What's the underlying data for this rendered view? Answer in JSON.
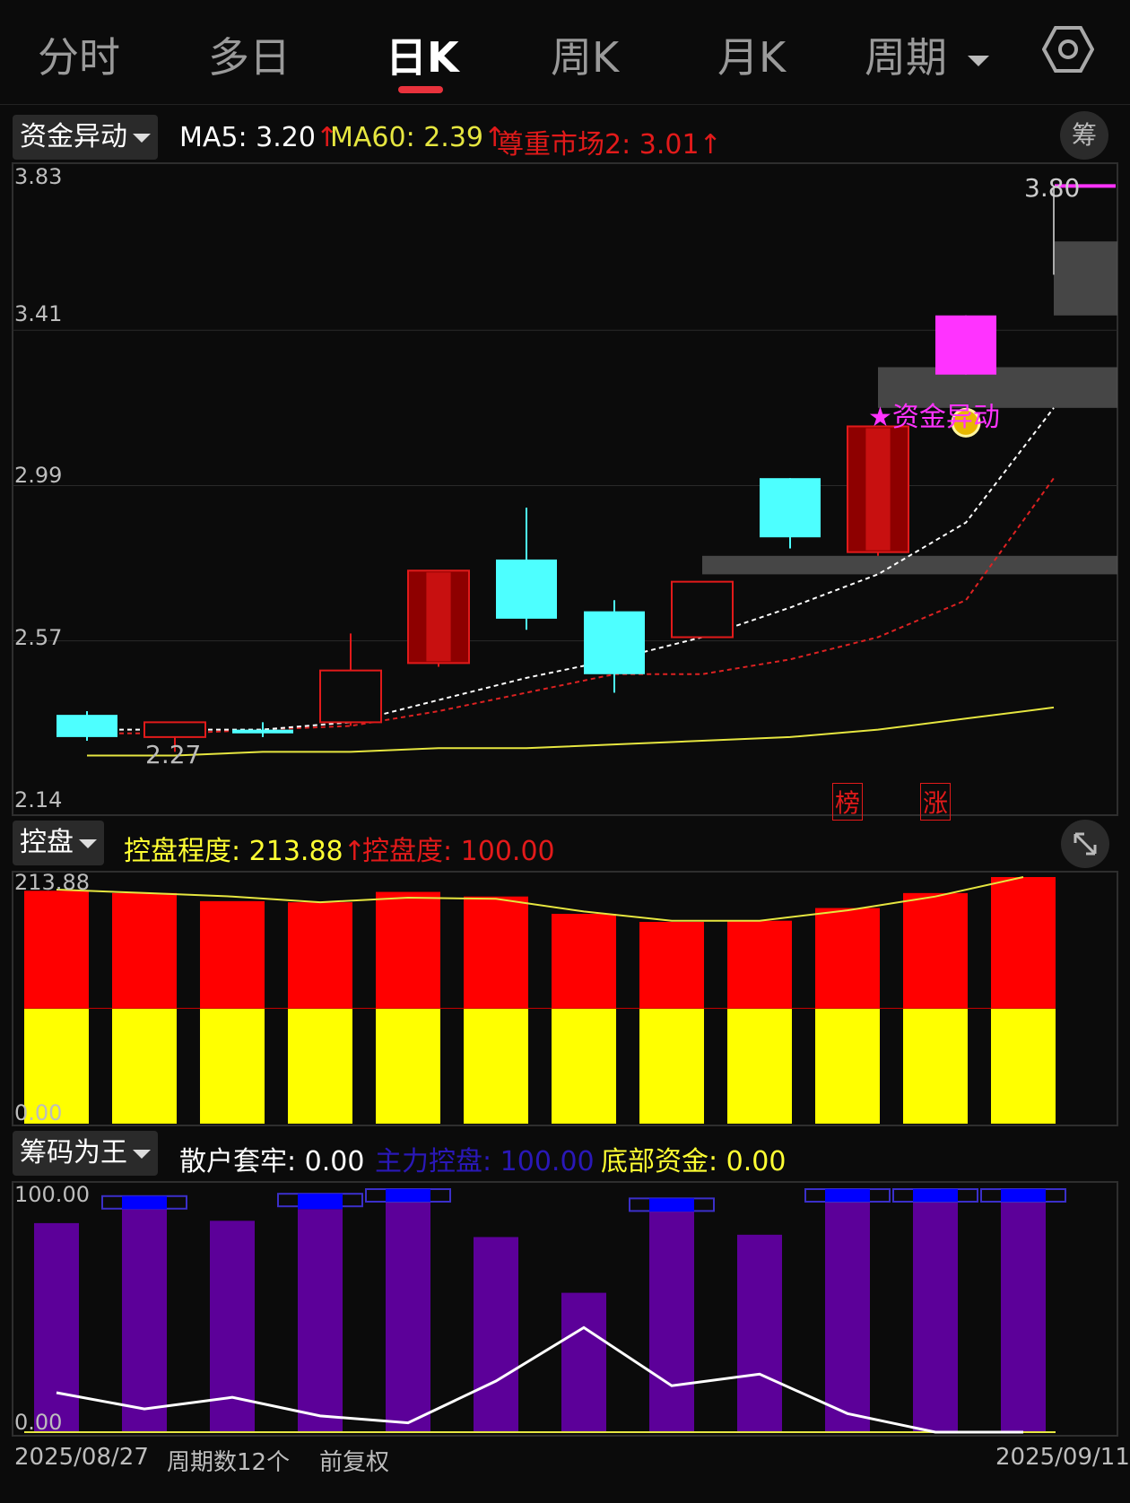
{
  "tabs": [
    {
      "label": "分时",
      "active": false
    },
    {
      "label": "多日",
      "active": false
    },
    {
      "label": "日K",
      "active": true
    },
    {
      "label": "周K",
      "active": false
    },
    {
      "label": "月K",
      "active": false
    },
    {
      "label": "周期",
      "active": false
    }
  ],
  "settings_icon": "gear-icon",
  "main_panel": {
    "indicator": "资金异动",
    "ma5": "MA5: 3.20",
    "ma60": "MA60: 2.39",
    "zzsc": "尊重市场2: 3.01",
    "chip_button": "筹",
    "axis": [
      "3.83",
      "3.41",
      "2.99",
      "2.57",
      "2.14"
    ],
    "low_label": "2.27",
    "high_label": "3.80",
    "signal_label": "★资金异动",
    "tag_bang": "榜",
    "tag_zhang": "涨",
    "colors": {
      "up": "#e21a1a",
      "down": "#4dffff",
      "ma5": "#ffffff",
      "ma60": "#dd2222",
      "ma_long": "#e6e640",
      "magenta": "#ff33ff"
    }
  },
  "kongpan_panel": {
    "indicator": "控盘",
    "degree_label": "控盘程度: 213.88",
    "control_label": "控盘度: 100.00",
    "axis_top": "213.88",
    "axis_bottom": "0.00",
    "expand_icon": "expand-icon"
  },
  "chouma_panel": {
    "indicator": "筹码为王",
    "sanhu_label": "散户套牢: 0.00",
    "zhuli_label": "主力控盘: 100.00",
    "dibu_label": "底部资金: 0.00",
    "axis_top": "100.00",
    "axis_bottom": "0.00"
  },
  "footer": {
    "start_date": "2025/08/27",
    "period_count": "周期数12个",
    "adjust": "前复权",
    "end_date": "2025/09/11"
  },
  "chart_data": [
    {
      "type": "candlestick",
      "ylim": [
        2.14,
        3.83
      ],
      "candles": [
        {
          "open": 2.37,
          "close": 2.31,
          "high": 2.38,
          "low": 2.3
        },
        {
          "open": 2.31,
          "close": 2.35,
          "high": 2.35,
          "low": 2.27
        },
        {
          "open": 2.33,
          "close": 2.32,
          "high": 2.35,
          "low": 2.31
        },
        {
          "open": 2.35,
          "close": 2.49,
          "high": 2.59,
          "low": 2.34
        },
        {
          "open": 2.51,
          "close": 2.76,
          "high": 2.76,
          "low": 2.5
        },
        {
          "open": 2.79,
          "close": 2.63,
          "high": 2.93,
          "low": 2.6
        },
        {
          "open": 2.65,
          "close": 2.48,
          "high": 2.68,
          "low": 2.43
        },
        {
          "open": 2.58,
          "close": 2.73,
          "high": 2.73,
          "low": 2.58
        },
        {
          "open": 3.01,
          "close": 2.85,
          "high": 3.01,
          "low": 2.82
        },
        {
          "open": 2.81,
          "close": 3.15,
          "high": 3.15,
          "low": 2.8
        },
        {
          "open": 3.45,
          "close": 3.29,
          "high": 3.45,
          "low": 3.29
        },
        {
          "open": 3.8,
          "close": 3.8,
          "high": 3.8,
          "low": 3.56
        }
      ],
      "ma5": [
        2.33,
        2.33,
        2.33,
        2.35,
        2.41,
        2.47,
        2.52,
        2.58,
        2.66,
        2.75,
        2.89,
        3.2
      ],
      "ma_red": [
        2.32,
        2.32,
        2.33,
        2.34,
        2.38,
        2.43,
        2.48,
        2.48,
        2.52,
        2.58,
        2.68,
        3.01
      ],
      "ma60": [
        2.26,
        2.26,
        2.27,
        2.27,
        2.28,
        2.28,
        2.29,
        2.3,
        2.31,
        2.33,
        2.36,
        2.39
      ],
      "gray_zones": [
        {
          "from_index": 7,
          "low": 2.75,
          "high": 2.8
        },
        {
          "from_index": 9,
          "low": 3.2,
          "high": 3.31
        },
        {
          "from_index": 11,
          "low": 3.45,
          "high": 3.65
        }
      ]
    },
    {
      "type": "bar",
      "ylim": [
        0,
        213.88
      ],
      "red_top": [
        202,
        200,
        193,
        192,
        201,
        197,
        182,
        175,
        176,
        187,
        200,
        213.88
      ],
      "yellow_top": [
        100,
        100,
        100,
        100,
        100,
        100,
        100,
        100,
        100,
        100,
        100,
        100
      ],
      "line": [
        203,
        200,
        197,
        192,
        196,
        195,
        184,
        176,
        176,
        185,
        197,
        213.88
      ]
    },
    {
      "type": "bar",
      "ylim": [
        0,
        100
      ],
      "purple": [
        90,
        96,
        91,
        96,
        100,
        84,
        60,
        95,
        85,
        100,
        100,
        100
      ],
      "blue": [
        0,
        97,
        0,
        98,
        100,
        0,
        0,
        96,
        0,
        100,
        100,
        100
      ],
      "white_line": [
        17,
        10,
        15,
        7,
        4,
        22,
        45,
        20,
        25,
        8,
        0,
        0
      ]
    }
  ]
}
